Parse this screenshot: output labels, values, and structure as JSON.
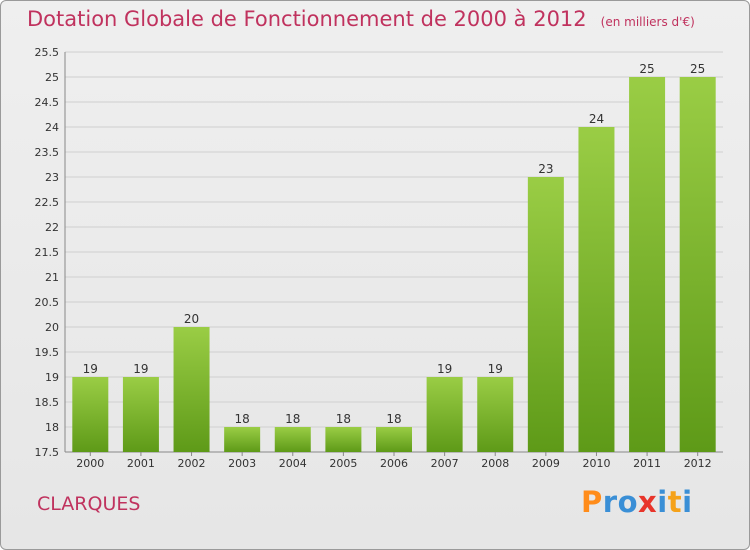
{
  "title": "Dotation Globale de Fonctionnement de 2000 à 2012",
  "unit_note": "(en milliers d'€)",
  "commune": "CLARQUES",
  "logo": {
    "text": "Proxiti",
    "colors": [
      "#ff8c1a",
      "#3a8fd6",
      "#3a8fd6",
      "#e8352b",
      "#3a8fd6",
      "#f5a21a",
      "#3a8fd6"
    ]
  },
  "colors": {
    "title": "#c0325e",
    "bar_top": "#9acd45",
    "bar_bottom": "#5e9a18",
    "grid": "#cfcfcf",
    "axis": "#888888"
  },
  "chart_data": {
    "type": "bar",
    "title": "Dotation Globale de Fonctionnement de 2000 à 2012",
    "xlabel": "",
    "ylabel": "",
    "categories": [
      "2000",
      "2001",
      "2002",
      "2003",
      "2004",
      "2005",
      "2006",
      "2007",
      "2008",
      "2009",
      "2010",
      "2011",
      "2012"
    ],
    "values": [
      19,
      19,
      20,
      18,
      18,
      18,
      18,
      19,
      19,
      23,
      24,
      25,
      25
    ],
    "ylim": [
      17.5,
      25.5
    ],
    "yticks": [
      "17.5",
      "18",
      "18.5",
      "19",
      "19.5",
      "20",
      "20.5",
      "21",
      "21.5",
      "22",
      "22.5",
      "23",
      "23.5",
      "24",
      "24.5",
      "25",
      "25.5"
    ],
    "grid": true,
    "legend": "none"
  }
}
